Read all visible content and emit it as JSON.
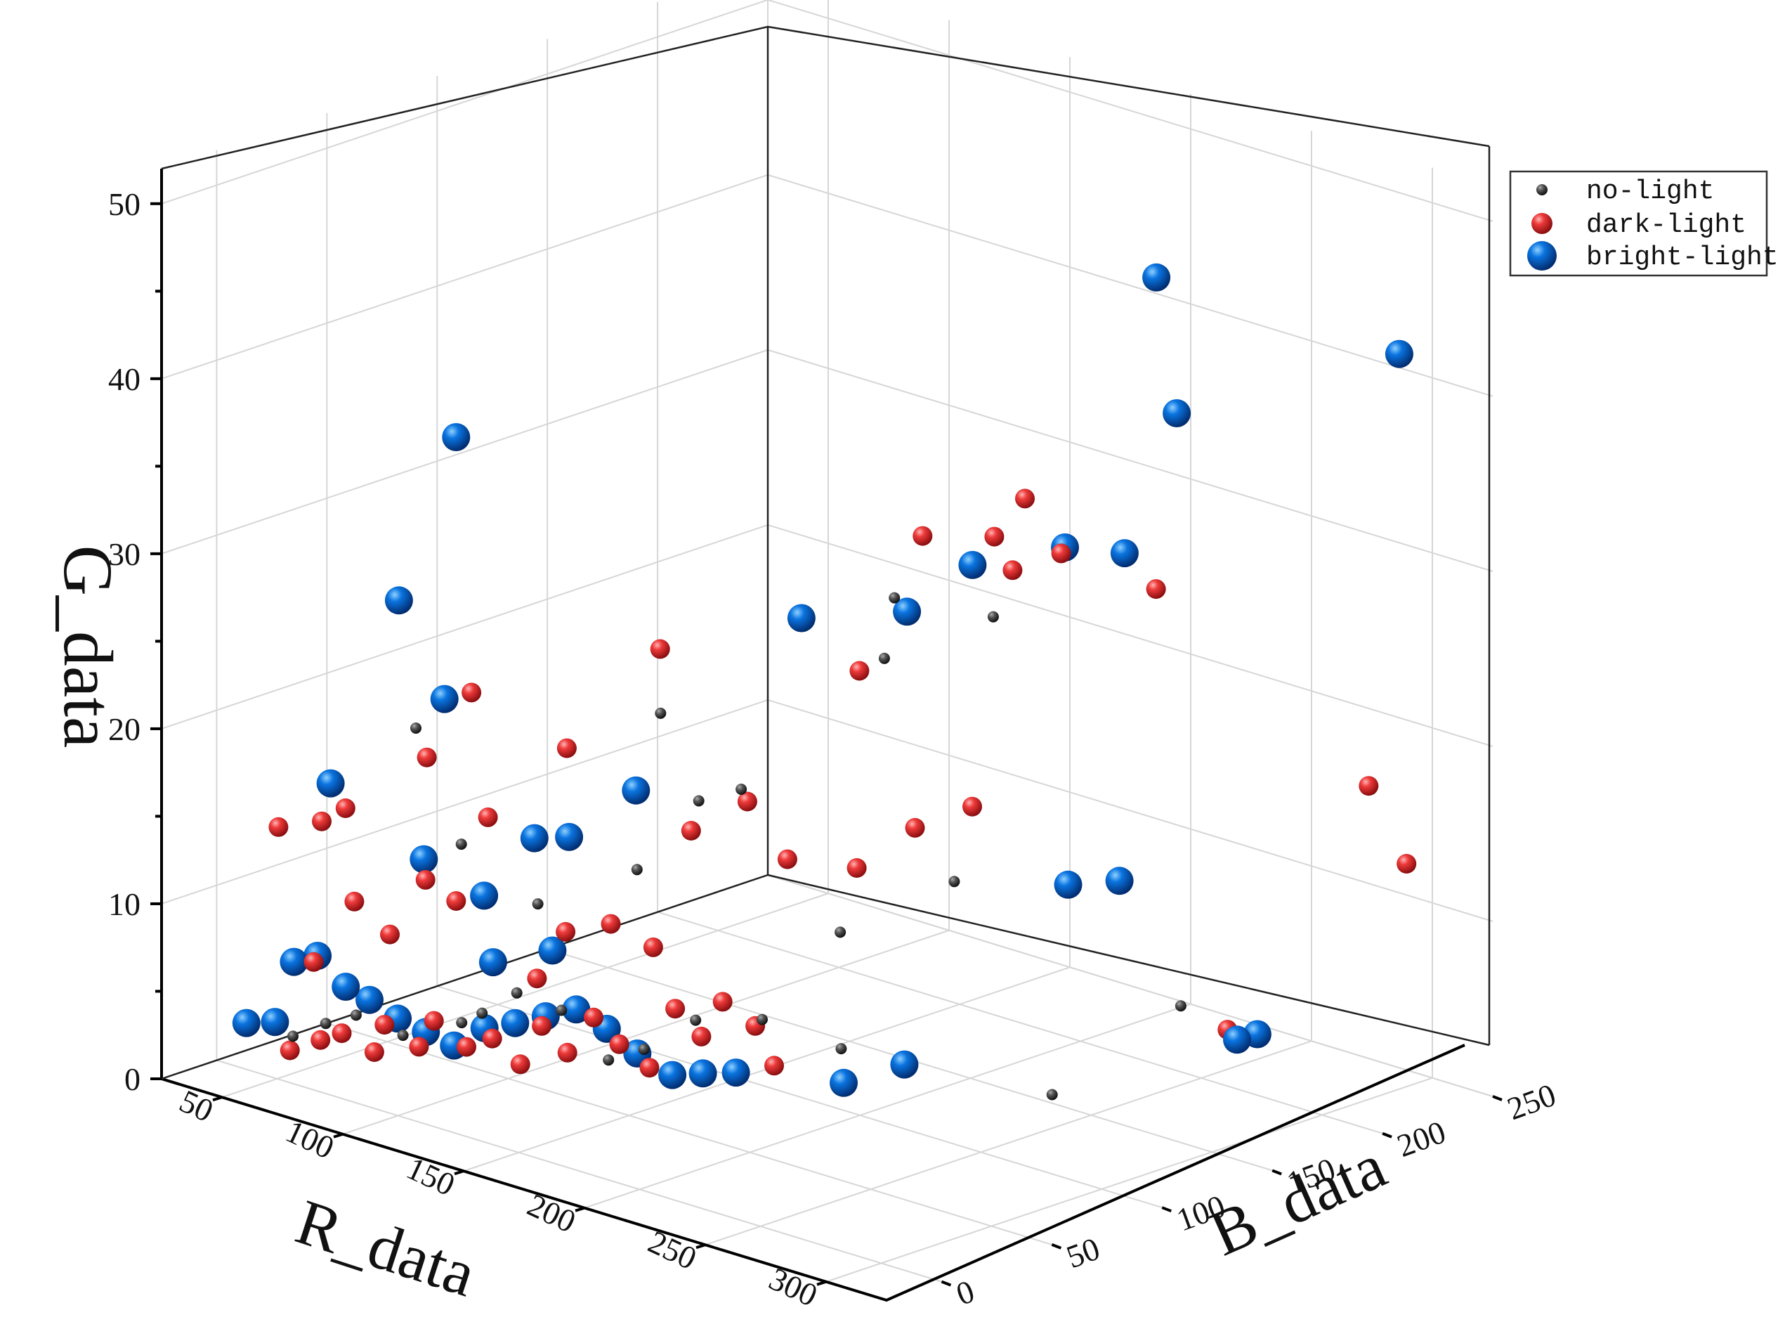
{
  "chart_data": {
    "type": "scatter",
    "title": "",
    "xlabel": "R_data",
    "ylabel": "G_data",
    "zlabel": "B_data",
    "xlim": [
      25,
      325
    ],
    "ylim": [
      0,
      52
    ],
    "zlim": [
      -25,
      250
    ],
    "x_ticks": [
      "50",
      "100",
      "150",
      "200",
      "250",
      "300"
    ],
    "y_ticks": [
      "0",
      "10",
      "20",
      "30",
      "40",
      "50"
    ],
    "z_ticks": [
      "0",
      "50",
      "100",
      "150",
      "200",
      "250"
    ],
    "grid": true,
    "legend_position": "top-right",
    "series": [
      {
        "name": "no-light",
        "color": "#333333",
        "points": [
          [
            52,
            2.3,
            5
          ],
          [
            61,
            3.2,
            10
          ],
          [
            69,
            3.8,
            15
          ],
          [
            82,
            2.9,
            22
          ],
          [
            99,
            4.0,
            30
          ],
          [
            112,
            5.3,
            25
          ],
          [
            120,
            6.5,
            32
          ],
          [
            133,
            5.8,
            38
          ],
          [
            147,
            3.3,
            44
          ],
          [
            158,
            4.2,
            48
          ],
          [
            173,
            6.2,
            55
          ],
          [
            196,
            7.0,
            60
          ],
          [
            215,
            5.5,
            75
          ],
          [
            243,
            1.3,
            140
          ],
          [
            278,
            7.0,
            160
          ],
          [
            91,
            21.0,
            18
          ],
          [
            108,
            15.0,
            20
          ],
          [
            136,
            12.6,
            24
          ],
          [
            167,
            15.4,
            35
          ],
          [
            188,
            20.0,
            40
          ],
          [
            201,
            21.0,
            45
          ],
          [
            221,
            12.7,
            68
          ],
          [
            239,
            15.0,
            100
          ],
          [
            174,
            24.5,
            38
          ],
          [
            221,
            27.5,
            88
          ],
          [
            227,
            31.3,
            86
          ],
          [
            246,
            30.0,
            110
          ]
        ]
      },
      {
        "name": "dark-light",
        "color": "#dd2a2e",
        "points": [
          [
            48,
            1.2,
            8
          ],
          [
            57,
            2.0,
            12
          ],
          [
            64,
            2.6,
            14
          ],
          [
            72,
            1.6,
            20
          ],
          [
            78,
            3.5,
            18
          ],
          [
            85,
            2.2,
            26
          ],
          [
            93,
            4.1,
            24
          ],
          [
            101,
            2.7,
            30
          ],
          [
            108,
            3.3,
            34
          ],
          [
            116,
            2.0,
            38
          ],
          [
            123,
            4.4,
            40
          ],
          [
            130,
            3.0,
            44
          ],
          [
            139,
            5.3,
            46
          ],
          [
            146,
            3.9,
            50
          ],
          [
            153,
            2.6,
            56
          ],
          [
            160,
            6.1,
            60
          ],
          [
            169,
            4.8,
            62
          ],
          [
            176,
            7.0,
            64
          ],
          [
            184,
            5.7,
            70
          ],
          [
            190,
            3.6,
            72
          ],
          [
            56,
            6.5,
            10
          ],
          [
            71,
            10.5,
            12
          ],
          [
            83,
            9.0,
            15
          ],
          [
            95,
            12.5,
            18
          ],
          [
            104,
            11.5,
            22
          ],
          [
            119,
            17.0,
            20
          ],
          [
            132,
            8.0,
            28
          ],
          [
            142,
            11.0,
            30
          ],
          [
            158,
            12.0,
            33
          ],
          [
            171,
            11.0,
            38
          ],
          [
            183,
            18.0,
            42
          ],
          [
            199,
            20.0,
            50
          ],
          [
            211,
            17.0,
            55
          ],
          [
            226,
            16.5,
            70
          ],
          [
            241,
            19.0,
            80
          ],
          [
            251,
            20.0,
            95
          ],
          [
            46,
            14.0,
            5
          ],
          [
            63,
            15.0,
            6
          ],
          [
            71,
            16.0,
            8
          ],
          [
            101,
            20.0,
            12
          ],
          [
            114,
            24.0,
            18
          ],
          [
            148,
            22.0,
            24
          ],
          [
            172,
            28.0,
            40
          ],
          [
            218,
            27.0,
            80
          ],
          [
            235,
            35.0,
            90
          ],
          [
            254,
            33.0,
            110
          ],
          [
            251,
            35.0,
            105
          ],
          [
            250,
            36.5,
            120
          ],
          [
            265,
            34.0,
            120
          ],
          [
            286,
            32.0,
            140
          ],
          [
            301,
            18.0,
            220
          ],
          [
            303,
            13.0,
            235
          ],
          [
            238,
            1.2,
            225
          ]
        ]
      },
      {
        "name": "bright-light",
        "color": "#0a62c8",
        "points": [
          [
            30,
            2.0,
            8
          ],
          [
            40,
            2.4,
            10
          ],
          [
            46,
            6.0,
            12
          ],
          [
            54,
            6.6,
            14
          ],
          [
            62,
            5.0,
            18
          ],
          [
            70,
            4.5,
            20
          ],
          [
            78,
            3.6,
            24
          ],
          [
            86,
            3.0,
            28
          ],
          [
            94,
            2.4,
            32
          ],
          [
            103,
            3.6,
            36
          ],
          [
            112,
            4.1,
            40
          ],
          [
            121,
            4.7,
            44
          ],
          [
            130,
            5.3,
            48
          ],
          [
            139,
            4.4,
            52
          ],
          [
            148,
            3.2,
            56
          ],
          [
            157,
            2.1,
            62
          ],
          [
            166,
            2.4,
            66
          ],
          [
            176,
            2.7,
            70
          ],
          [
            206,
            2.7,
            86
          ],
          [
            222,
            4.0,
            96
          ],
          [
            112,
            8.0,
            30
          ],
          [
            132,
            9.3,
            35
          ],
          [
            101,
            11.0,
            38
          ],
          [
            120,
            15.0,
            40
          ],
          [
            87,
            13.0,
            26
          ],
          [
            63,
            17.0,
            10
          ],
          [
            101,
            23.0,
            20
          ],
          [
            138,
            16.0,
            36
          ],
          [
            162,
            19.5,
            40
          ],
          [
            84,
            28.0,
            18
          ],
          [
            104,
            38.0,
            22
          ],
          [
            194,
            29.0,
            80
          ],
          [
            224,
            30.0,
            95
          ],
          [
            242,
            33.0,
            105
          ],
          [
            262,
            34.0,
            125
          ],
          [
            273,
            33.5,
            140
          ],
          [
            290,
            42.0,
            145
          ],
          [
            277,
            49.0,
            150
          ],
          [
            277,
            16.0,
            110
          ],
          [
            280,
            15.5,
            130
          ],
          [
            242,
            0.8,
            225
          ],
          [
            244,
            0.9,
            232
          ],
          [
            300,
            42.0,
            235
          ]
        ]
      }
    ]
  }
}
